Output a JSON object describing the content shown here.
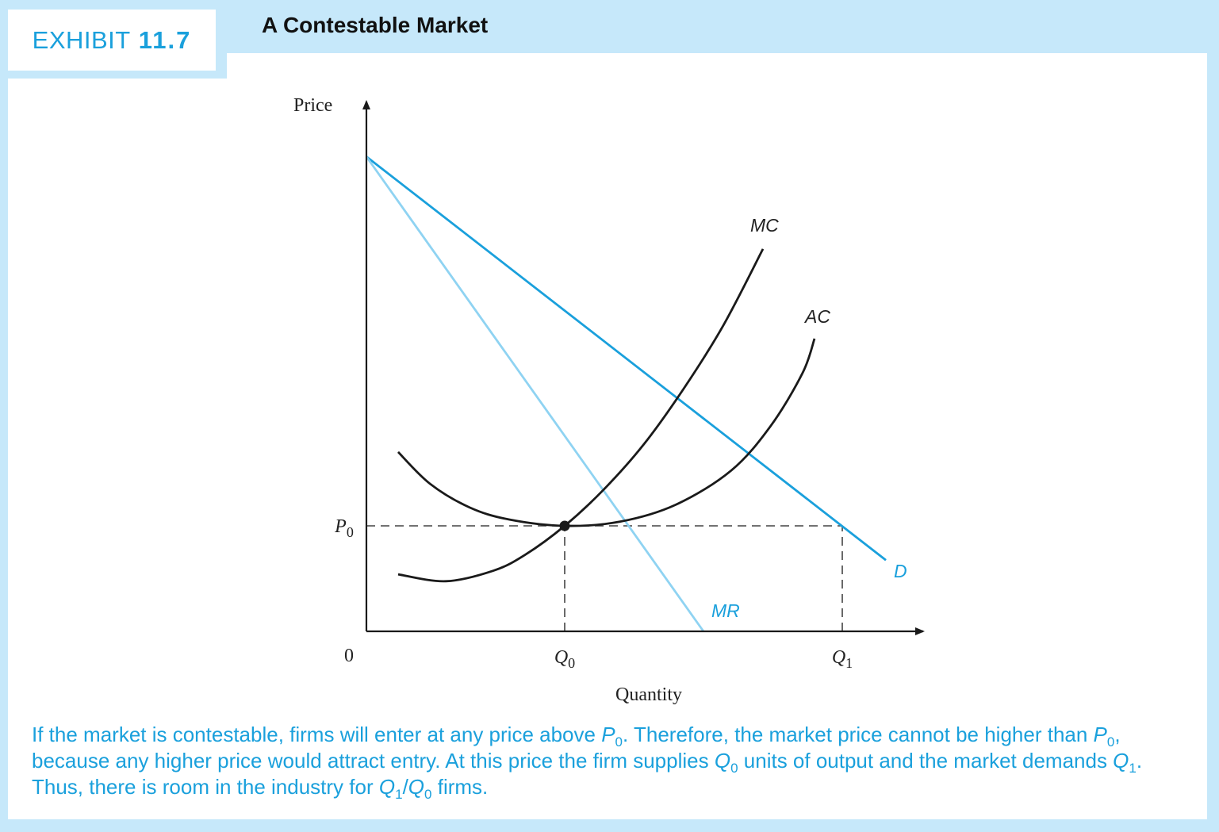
{
  "exhibit": {
    "label": "EXHIBIT",
    "number": "11.7",
    "title": "A Contestable Market"
  },
  "colors": {
    "demand": "#1aa0dc",
    "mr": "#8fd3f2",
    "cost_curves": "#1a1a1a",
    "accent_text": "#1aa0dc",
    "frame": "#c6e8fa"
  },
  "chart_data": {
    "type": "line",
    "title": "A Contestable Market",
    "xlabel": "Quantity",
    "ylabel": "Price",
    "origin_label": "0",
    "x_ticks": [
      {
        "label": "Q",
        "sub": "0",
        "value": 2.5
      },
      {
        "label": "Q",
        "sub": "1",
        "value": 6.0
      }
    ],
    "y_ticks": [
      {
        "label": "P",
        "sub": "0",
        "value": 2.0
      }
    ],
    "xlim": [
      0,
      7.0
    ],
    "ylim": [
      0,
      10.0
    ],
    "series": [
      {
        "name": "D",
        "kind": "line",
        "points": [
          [
            0,
            9.0
          ],
          [
            6.55,
            1.35
          ]
        ]
      },
      {
        "name": "MR",
        "kind": "line",
        "points": [
          [
            0,
            9.0
          ],
          [
            4.25,
            0
          ]
        ]
      },
      {
        "name": "MC",
        "kind": "curve",
        "points": [
          [
            0.4,
            1.08
          ],
          [
            1.0,
            0.95
          ],
          [
            1.6,
            1.15
          ],
          [
            2.0,
            1.45
          ],
          [
            2.5,
            2.0
          ],
          [
            3.0,
            2.7
          ],
          [
            3.5,
            3.55
          ],
          [
            4.0,
            4.6
          ],
          [
            4.5,
            5.8
          ],
          [
            5.0,
            7.25
          ]
        ]
      },
      {
        "name": "AC",
        "kind": "curve",
        "points": [
          [
            0.4,
            3.4
          ],
          [
            0.8,
            2.8
          ],
          [
            1.3,
            2.35
          ],
          [
            1.8,
            2.12
          ],
          [
            2.5,
            2.0
          ],
          [
            3.2,
            2.08
          ],
          [
            3.9,
            2.4
          ],
          [
            4.6,
            3.05
          ],
          [
            5.1,
            3.9
          ],
          [
            5.5,
            4.9
          ],
          [
            5.65,
            5.55
          ]
        ]
      }
    ],
    "equilibrium_point": {
      "x": 2.5,
      "y": 2.0
    },
    "reference_lines": [
      {
        "from": [
          0,
          2.0
        ],
        "to": [
          6.0,
          2.0
        ],
        "style": "dashed"
      },
      {
        "from": [
          2.5,
          0
        ],
        "to": [
          2.5,
          2.0
        ],
        "style": "dashed"
      },
      {
        "from": [
          6.0,
          0
        ],
        "to": [
          6.0,
          2.0
        ],
        "style": "dashed"
      }
    ],
    "grid": false
  },
  "caption": {
    "parts": [
      {
        "t": "If the market is contestable, firms will enter at any price above "
      },
      {
        "t": "P",
        "style": "i"
      },
      {
        "t": "0",
        "style": "sub"
      },
      {
        "t": ". Therefore, the market price cannot be higher than "
      },
      {
        "t": "P",
        "style": "i"
      },
      {
        "t": "0",
        "style": "sub"
      },
      {
        "t": ", because any higher price would attract entry. At this price the firm supplies "
      },
      {
        "t": "Q",
        "style": "i"
      },
      {
        "t": "0",
        "style": "sub"
      },
      {
        "t": " units of output and the market demands "
      },
      {
        "t": "Q",
        "style": "i"
      },
      {
        "t": "1",
        "style": "sub"
      },
      {
        "t": ". Thus, there is room in the industry for "
      },
      {
        "t": "Q",
        "style": "i"
      },
      {
        "t": "1",
        "style": "sub"
      },
      {
        "t": "/"
      },
      {
        "t": "Q",
        "style": "i"
      },
      {
        "t": "0",
        "style": "sub"
      },
      {
        "t": " firms."
      }
    ]
  }
}
